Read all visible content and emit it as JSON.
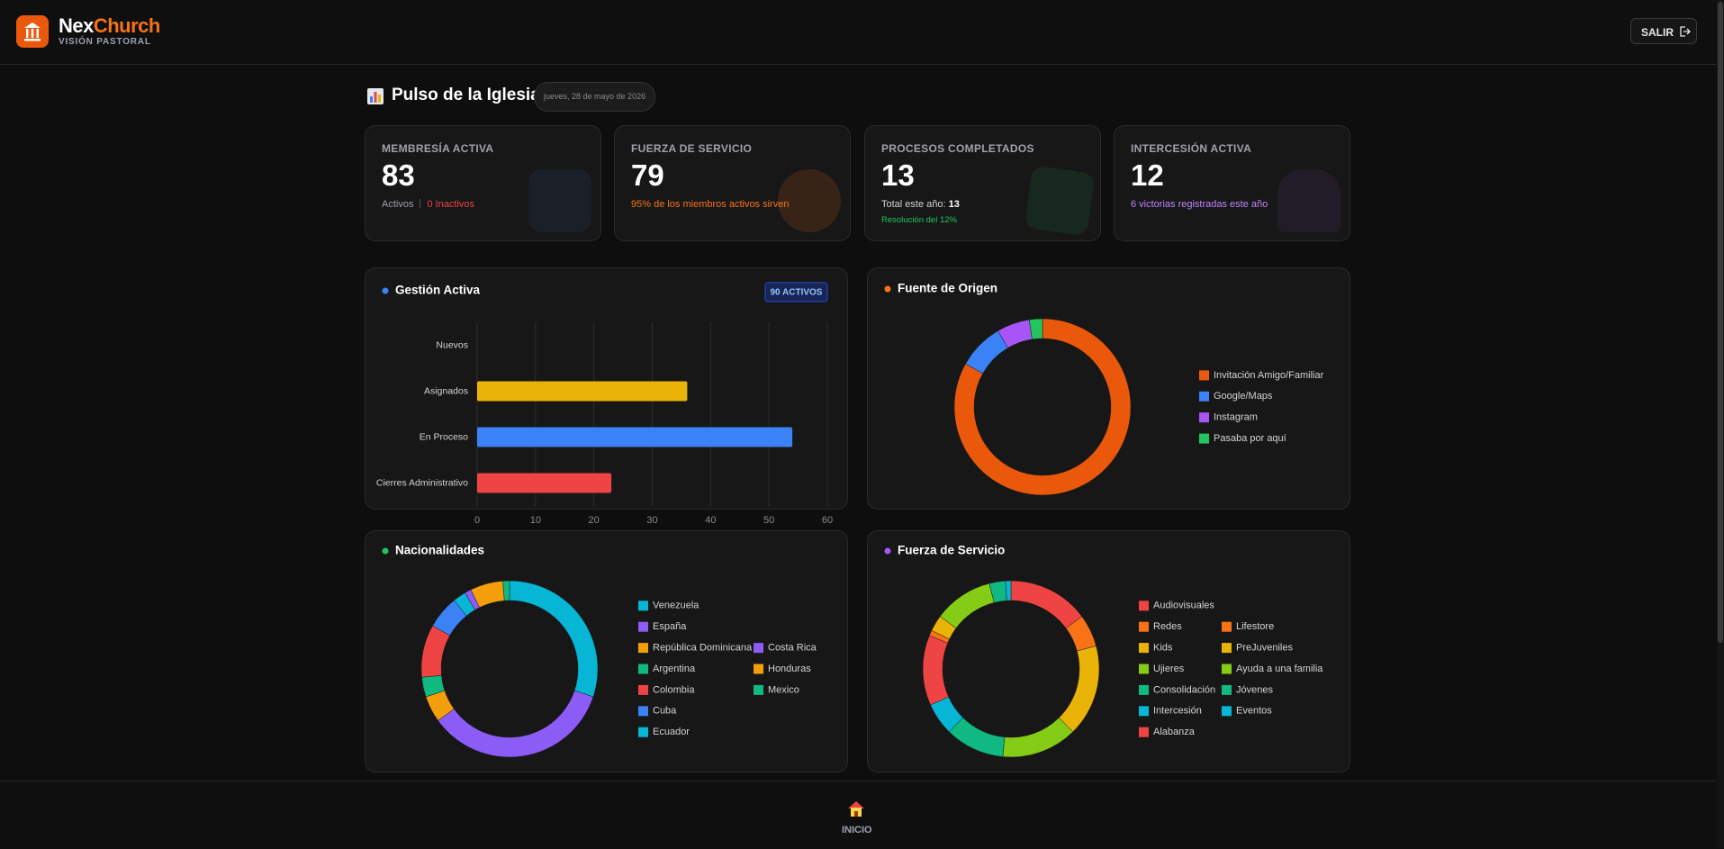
{
  "header": {
    "brand_prefix": "Nex",
    "brand_suffix": "Church",
    "tagline": "VISIÓN PASTORAL",
    "logout": "SALIR"
  },
  "dashboard": {
    "title": "Pulso de la Iglesia",
    "date": "jueves, 28 de mayo de 2026"
  },
  "kpis": [
    {
      "label": "MEMBRESÍA ACTIVA",
      "value": 83,
      "sub": "Activos",
      "sub2": "0 Inactivos"
    },
    {
      "label": "FUERZA DE SERVICIO",
      "value": 79,
      "sub": "95% de los miembros activos sirven"
    },
    {
      "label": "PROCESOS COMPLETADOS",
      "value": 13,
      "sub": "Total este año:",
      "sub_value": 13,
      "note": "Resolución del 12%"
    },
    {
      "label": "INTERCESIÓN ACTIVA",
      "value": 12,
      "sub": "6 victorias registradas este año"
    }
  ],
  "chart_data": [
    {
      "type": "bar",
      "orientation": "horizontal",
      "title": "Gestión Activa",
      "accent": "#3b82f6",
      "badge": "90 ACTIVOS",
      "categories": [
        "Nuevos",
        "Asignados",
        "En Proceso",
        "Cierres Administrativo"
      ],
      "values": [
        0,
        36,
        54,
        23
      ],
      "colors": [
        "#9ca3af",
        "#eab308",
        "#3b82f6",
        "#ef4444"
      ],
      "xlim": [
        0,
        60
      ],
      "xticks": [
        0,
        10,
        20,
        30,
        40,
        50,
        60
      ],
      "grid": true
    },
    {
      "type": "doughnut",
      "title": "Fuente de Origen",
      "accent": "#f97316",
      "categories": [
        "Invitación Amigo/Familiar",
        "Google/Maps",
        "Instagram",
        "Pasaba por aquí"
      ],
      "values": [
        69,
        7,
        5,
        2
      ],
      "colors": [
        "#ea580c",
        "#3b82f6",
        "#a855f7",
        "#22c55e"
      ]
    },
    {
      "type": "doughnut",
      "title": "Nacionalidades",
      "accent": "#22c55e",
      "categories": [
        "Venezuela",
        "España",
        "República Dominicana",
        "Argentina",
        "Colombia",
        "Cuba",
        "Ecuador",
        "Costa Rica",
        "Honduras",
        "Mexico"
      ],
      "values": [
        25,
        29,
        4,
        3,
        8,
        5,
        2,
        1,
        5,
        1
      ],
      "colors": [
        "#06b6d4",
        "#8b5cf6",
        "#f59e0b",
        "#10b981",
        "#ef4444",
        "#3b82f6",
        "#06b6d4",
        "#8b5cf6",
        "#f59e0b",
        "#10b981"
      ]
    },
    {
      "type": "doughnut",
      "title": "Fuerza de Servicio",
      "accent": "#a855f7",
      "categories": [
        "Audiovisuales",
        "Redes",
        "Kids",
        "Ujieres",
        "Consolidación",
        "Intercesión",
        "Alabanza",
        "Lifestore",
        "PreJuveniles",
        "Ayuda a una familia",
        "Jóvenes",
        "Eventos"
      ],
      "values": [
        15,
        6,
        17,
        14,
        11,
        6,
        13,
        1,
        3,
        11,
        3,
        1
      ],
      "colors": [
        "#ef4444",
        "#f97316",
        "#eab308",
        "#84cc16",
        "#10b981",
        "#06b6d4",
        "#ef4444",
        "#f97316",
        "#eab308",
        "#84cc16",
        "#10b981",
        "#06b6d4"
      ]
    }
  ],
  "nav": {
    "home": "INICIO"
  }
}
